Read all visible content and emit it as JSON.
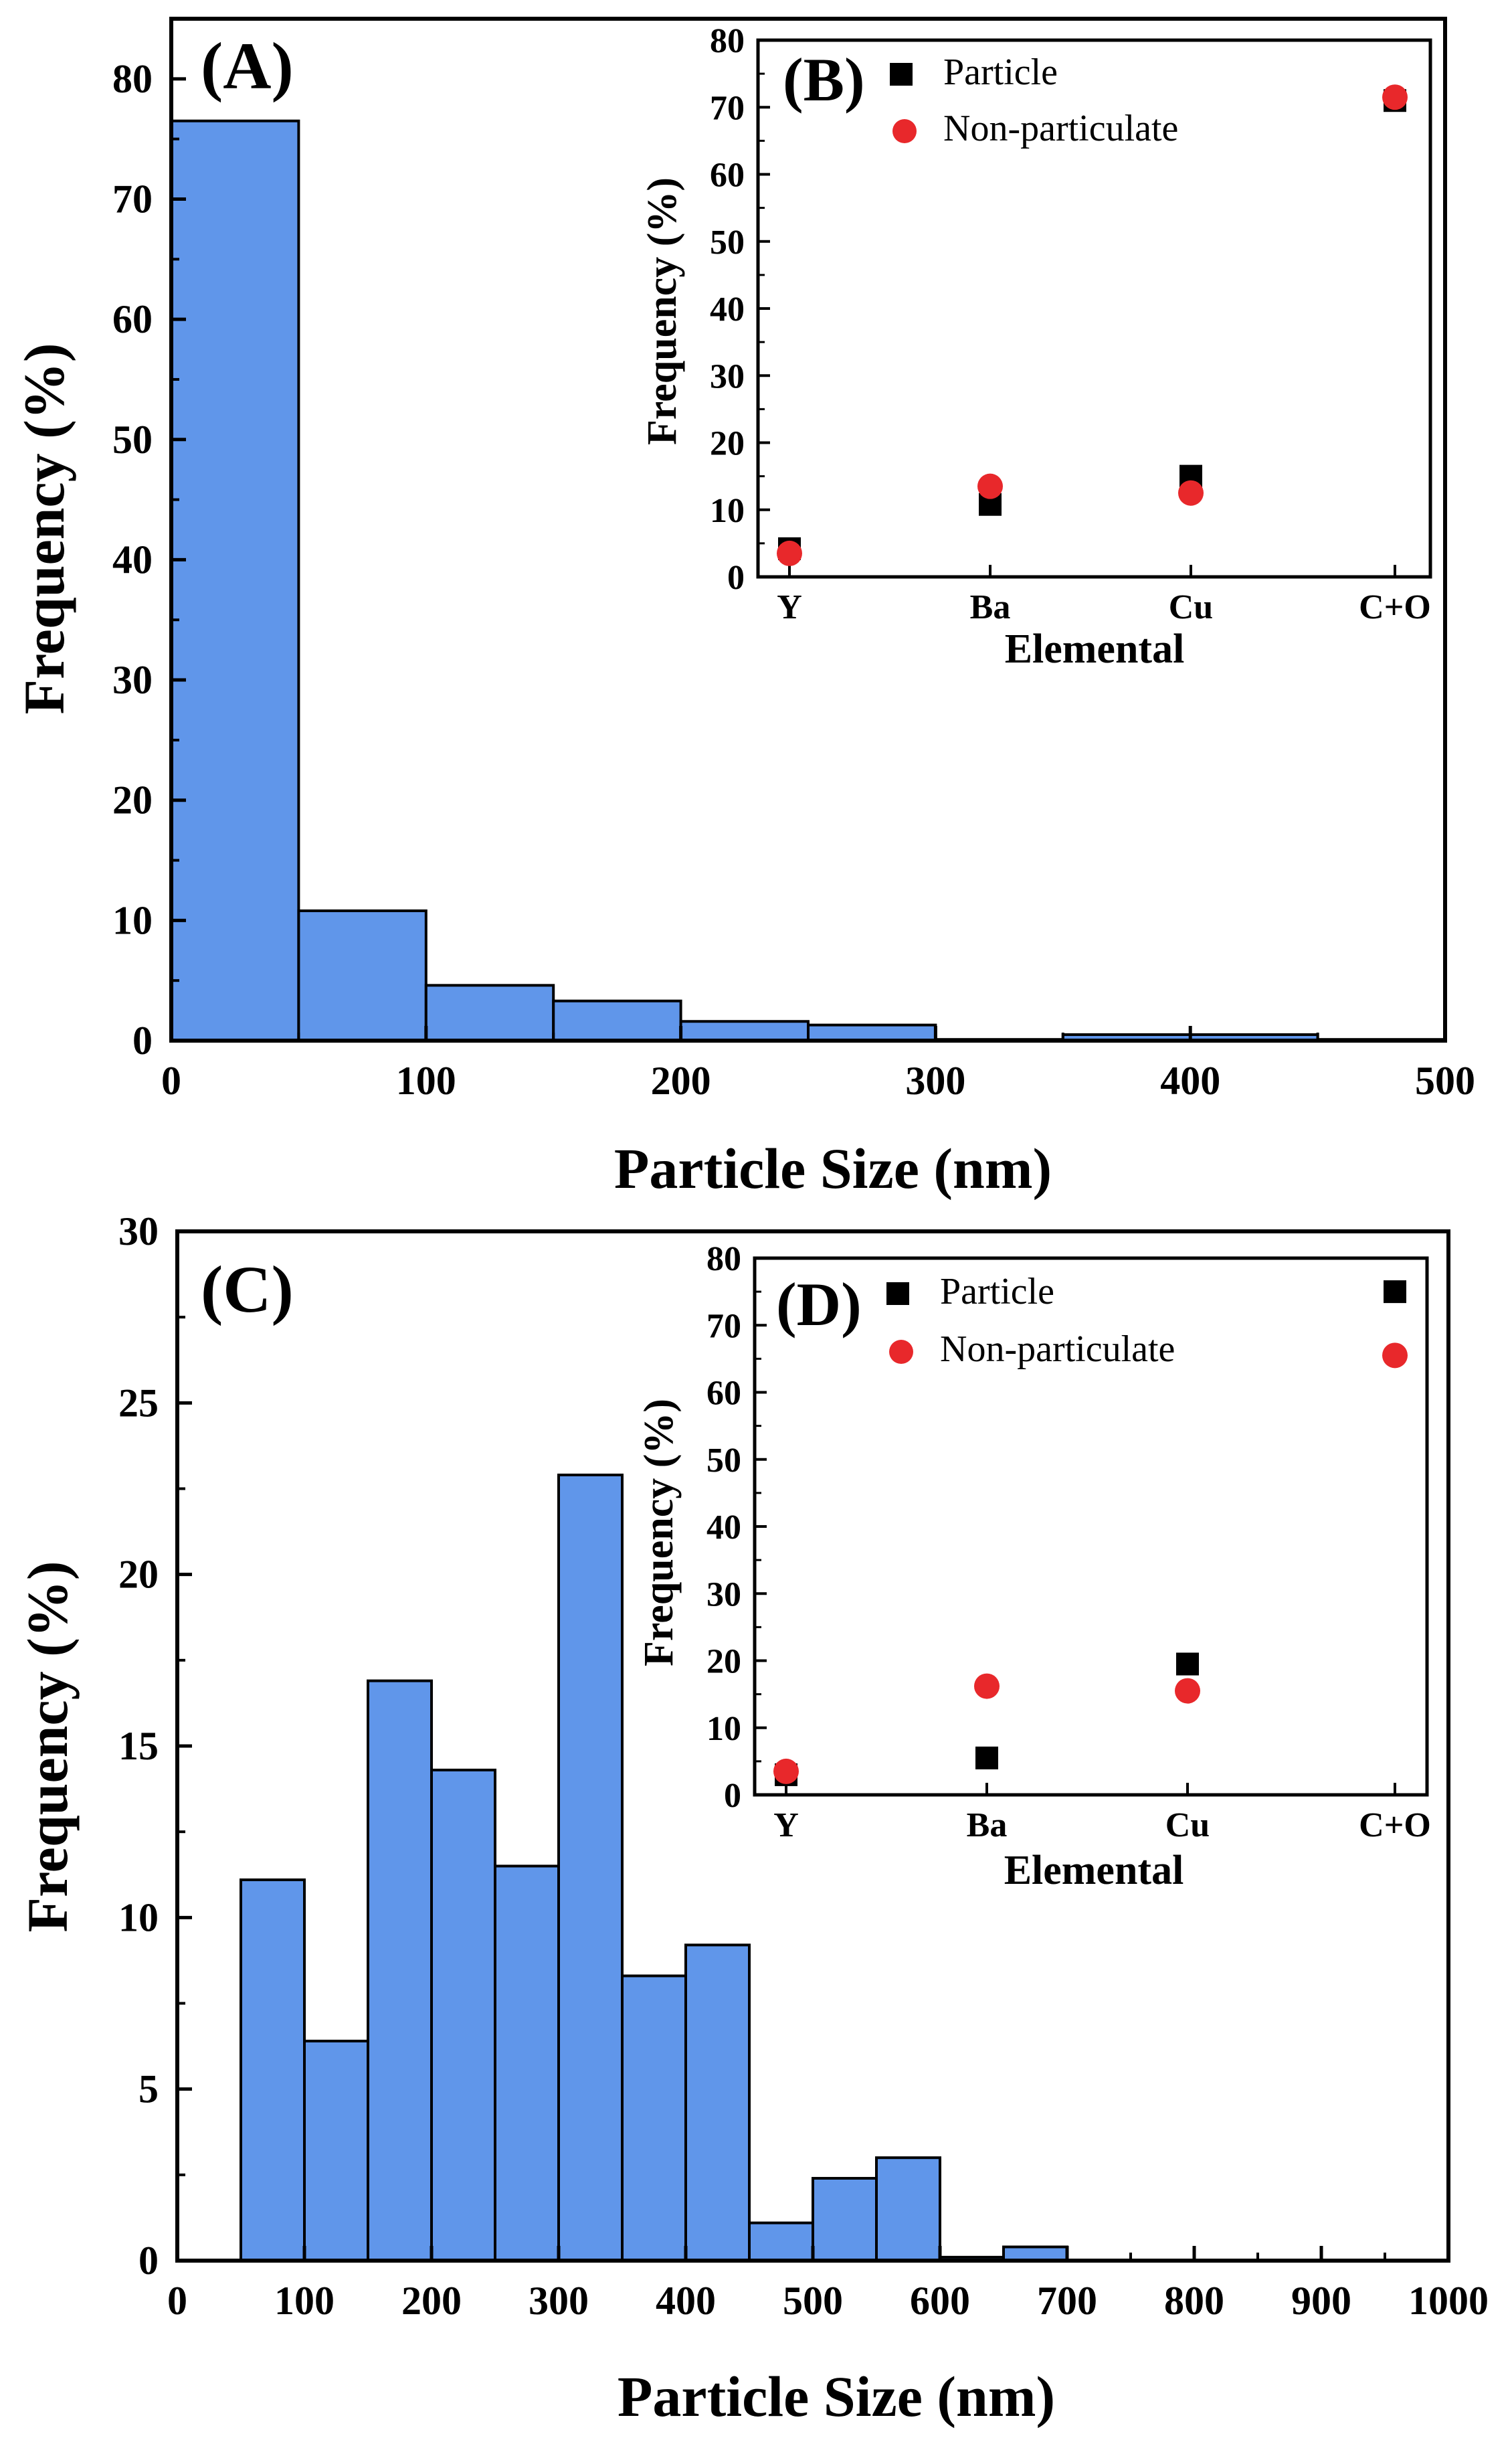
{
  "colors": {
    "bar_fill": "#6096EA",
    "bar_stroke": "#000000",
    "particle_marker": "#000000",
    "nonparticulate_marker": "#E8282B"
  },
  "chart_data": [
    {
      "id": "A",
      "panel_label": "(A)",
      "type": "bar",
      "xlabel": "Particle Size (nm)",
      "ylabel": "Frequency (%)",
      "xlim": [
        0,
        500
      ],
      "ylim": [
        0,
        85
      ],
      "xticks": [
        0,
        100,
        200,
        300,
        400,
        500
      ],
      "yticks": [
        0,
        10,
        20,
        30,
        40,
        50,
        60,
        70,
        80
      ],
      "bin_width": 50,
      "bins": [
        {
          "start": 0,
          "value": 76.5
        },
        {
          "start": 50,
          "value": 10.8
        },
        {
          "start": 100,
          "value": 4.6
        },
        {
          "start": 150,
          "value": 3.3
        },
        {
          "start": 200,
          "value": 1.6
        },
        {
          "start": 250,
          "value": 1.3
        },
        {
          "start": 300,
          "value": 0.1
        },
        {
          "start": 350,
          "value": 0.5
        },
        {
          "start": 400,
          "value": 0.5
        },
        {
          "start": 450,
          "value": 0.1
        }
      ]
    },
    {
      "id": "B",
      "panel_label": "(B)",
      "type": "scatter",
      "xlabel": "Elemental",
      "ylabel": "Frequency (%)",
      "ylim": [
        0,
        80
      ],
      "yticks": [
        0,
        10,
        20,
        30,
        40,
        50,
        60,
        70,
        80
      ],
      "categories": [
        "Y",
        "Ba",
        "Cu",
        "C+O"
      ],
      "series": [
        {
          "name": "Particle",
          "marker": "square",
          "values": [
            4.2,
            10.8,
            15.0,
            71.0
          ]
        },
        {
          "name": "Non-particulate",
          "marker": "circle",
          "values": [
            3.5,
            13.5,
            12.5,
            71.5
          ]
        }
      ]
    },
    {
      "id": "C",
      "panel_label": "(C)",
      "type": "bar",
      "xlabel": "Particle Size (nm)",
      "ylabel": "Frequency (%)",
      "xlim": [
        0,
        1000
      ],
      "ylim": [
        0,
        30
      ],
      "xticks": [
        0,
        100,
        200,
        300,
        400,
        500,
        600,
        700,
        800,
        900,
        1000
      ],
      "yticks": [
        0,
        5,
        10,
        15,
        20,
        25,
        30
      ],
      "bin_width": 50,
      "bins": [
        {
          "start": 50,
          "value": 11.1
        },
        {
          "start": 100,
          "value": 6.4
        },
        {
          "start": 150,
          "value": 16.9
        },
        {
          "start": 200,
          "value": 14.3
        },
        {
          "start": 250,
          "value": 11.5
        },
        {
          "start": 300,
          "value": 22.9
        },
        {
          "start": 350,
          "value": 8.3
        },
        {
          "start": 400,
          "value": 9.2
        },
        {
          "start": 450,
          "value": 1.1
        },
        {
          "start": 500,
          "value": 2.4
        },
        {
          "start": 550,
          "value": 3.0
        },
        {
          "start": 600,
          "value": 0.1
        },
        {
          "start": 650,
          "value": 0.4
        }
      ]
    },
    {
      "id": "D",
      "panel_label": "(D)",
      "type": "scatter",
      "xlabel": "Elemental",
      "ylabel": "Frequency (%)",
      "ylim": [
        0,
        80
      ],
      "yticks": [
        0,
        10,
        20,
        30,
        40,
        50,
        60,
        70,
        80
      ],
      "categories": [
        "Y",
        "Ba",
        "Cu",
        "C+O"
      ],
      "series": [
        {
          "name": "Particle",
          "marker": "square",
          "values": [
            3.0,
            5.5,
            19.5,
            75.0
          ]
        },
        {
          "name": "Non-particulate",
          "marker": "circle",
          "values": [
            3.5,
            16.2,
            15.5,
            65.5
          ]
        }
      ]
    }
  ]
}
